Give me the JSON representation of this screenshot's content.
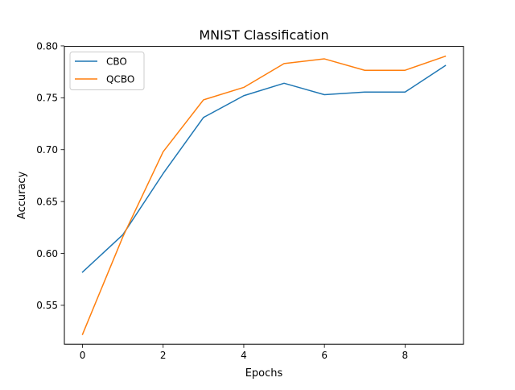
{
  "chart_data": {
    "type": "line",
    "title": "MNIST Classification",
    "xlabel": "Epochs",
    "ylabel": "Accuracy",
    "x": [
      0,
      1,
      2,
      3,
      4,
      5,
      6,
      7,
      8,
      9
    ],
    "xlim": [
      -0.45,
      9.45
    ],
    "ylim": [
      0.5125,
      0.7995
    ],
    "xticks": [
      0,
      2,
      4,
      6,
      8
    ],
    "xtick_labels": [
      "0",
      "2",
      "4",
      "6",
      "8"
    ],
    "yticks": [
      0.55,
      0.6,
      0.65,
      0.7,
      0.75,
      0.8
    ],
    "ytick_labels": [
      "0.55",
      "0.60",
      "0.65",
      "0.70",
      "0.75",
      "0.80"
    ],
    "grid": false,
    "legend_position": "top-left",
    "series": [
      {
        "name": "CBO",
        "color": "#1f77b4",
        "values": [
          0.582,
          0.618,
          0.677,
          0.731,
          0.752,
          0.764,
          0.753,
          0.7555,
          0.7555,
          0.781
        ]
      },
      {
        "name": "QCBO",
        "color": "#ff7f0e",
        "values": [
          0.522,
          0.616,
          0.698,
          0.748,
          0.76,
          0.783,
          0.7875,
          0.7765,
          0.7765,
          0.79
        ]
      }
    ]
  }
}
